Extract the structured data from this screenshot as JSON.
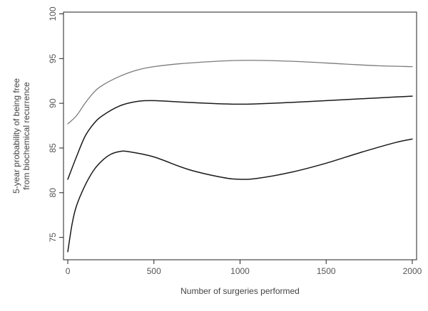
{
  "chart_data": {
    "type": "line",
    "title": "",
    "xlabel": "Number of surgeries performed",
    "ylabel_lines": [
      "5-year probability of being free",
      "from biochemical recurrence"
    ],
    "xlim": [
      -25,
      2025
    ],
    "ylim": [
      72.5,
      100.2
    ],
    "xticks": [
      0,
      500,
      1000,
      1500,
      2000
    ],
    "yticks": [
      75,
      80,
      85,
      90,
      95,
      100
    ],
    "grid": false,
    "legend": "none",
    "series": [
      {
        "color": "#7a7a7a",
        "x": [
          0,
          50,
          100,
          150,
          200,
          300,
          400,
          500,
          700,
          1000,
          1300,
          1600,
          1800,
          2000
        ],
        "y": [
          87.7,
          88.6,
          90.0,
          91.2,
          92.0,
          93.0,
          93.7,
          94.1,
          94.5,
          94.8,
          94.7,
          94.4,
          94.2,
          94.1
        ]
      },
      {
        "color": "#1a1a1a",
        "x": [
          0,
          50,
          100,
          150,
          200,
          300,
          400,
          500,
          700,
          1000,
          1300,
          1600,
          1800,
          2000
        ],
        "y": [
          81.5,
          84.0,
          86.3,
          87.7,
          88.6,
          89.7,
          90.2,
          90.3,
          90.1,
          89.9,
          90.1,
          90.4,
          90.6,
          90.8
        ]
      },
      {
        "color": "#1a1a1a",
        "x": [
          0,
          25,
          50,
          100,
          150,
          200,
          250,
          300,
          350,
          500,
          700,
          900,
          1000,
          1100,
          1300,
          1500,
          1700,
          1900,
          2000
        ],
        "y": [
          73.4,
          76.5,
          78.5,
          80.8,
          82.5,
          83.6,
          84.3,
          84.6,
          84.6,
          84.0,
          82.6,
          81.7,
          81.5,
          81.6,
          82.3,
          83.3,
          84.5,
          85.6,
          86.0
        ]
      }
    ]
  }
}
